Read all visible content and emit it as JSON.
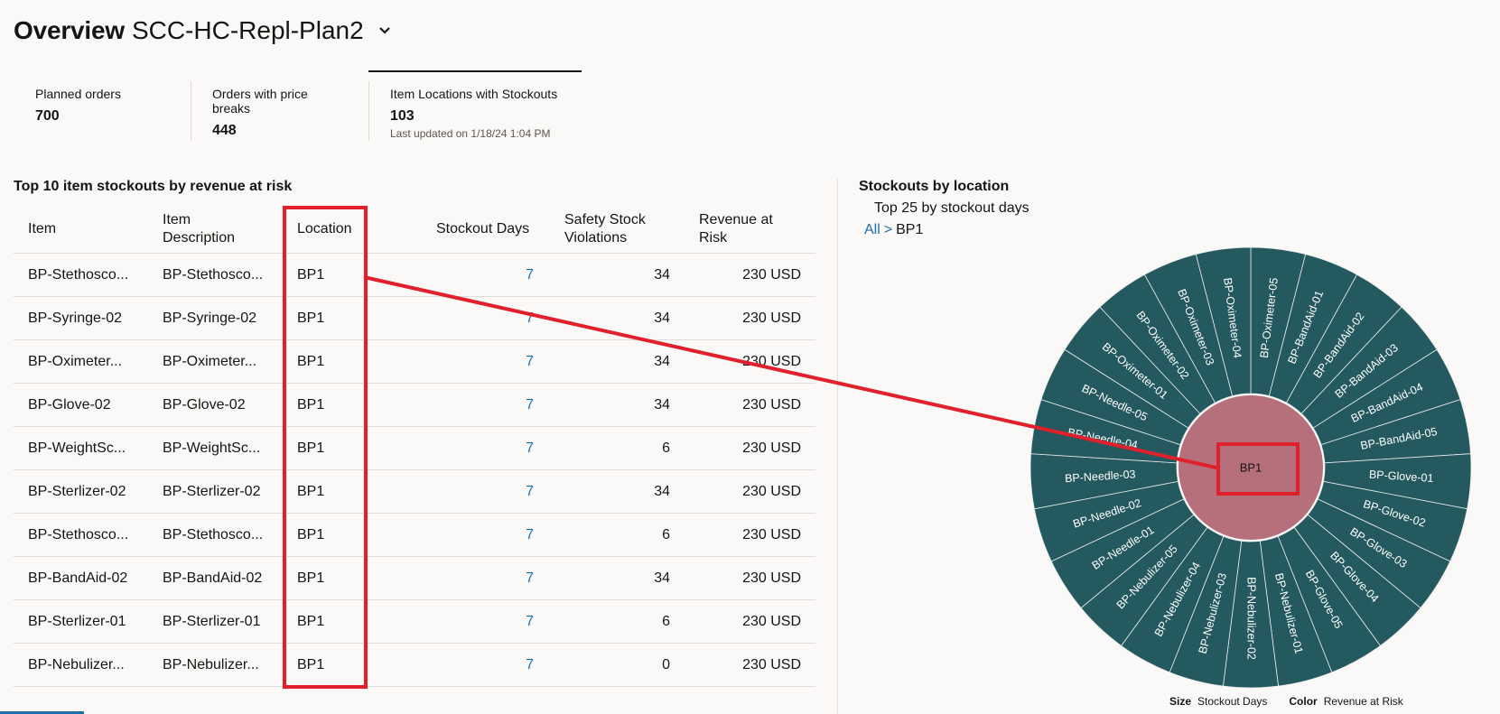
{
  "header": {
    "title": "Overview",
    "plan": "SCC-HC-Repl-Plan2"
  },
  "metrics": [
    {
      "label": "Planned orders",
      "value": "700"
    },
    {
      "label": "Orders with price breaks",
      "value": "448"
    },
    {
      "label": "Item Locations with Stockouts",
      "value": "103",
      "updated": "Last updated on 1/18/24 1:04 PM"
    }
  ],
  "table": {
    "title": "Top 10 item stockouts by revenue at risk",
    "columns": {
      "item": "Item",
      "item_desc_1": "Item",
      "item_desc_2": "Description",
      "location": "Location",
      "stockout_days": "Stockout Days",
      "ssv_1": "Safety Stock",
      "ssv_2": "Violations",
      "rar_1": "Revenue at",
      "rar_2": "Risk"
    },
    "rows": [
      {
        "item": "BP-Stethosco...",
        "desc": "BP-Stethosco...",
        "location": "BP1",
        "stockout_days": "7",
        "ssv": "34",
        "revenue": "230 USD"
      },
      {
        "item": "BP-Syringe-02",
        "desc": "BP-Syringe-02",
        "location": "BP1",
        "stockout_days": "7",
        "ssv": "34",
        "revenue": "230 USD"
      },
      {
        "item": "BP-Oximeter...",
        "desc": "BP-Oximeter...",
        "location": "BP1",
        "stockout_days": "7",
        "ssv": "34",
        "revenue": "230 USD"
      },
      {
        "item": "BP-Glove-02",
        "desc": "BP-Glove-02",
        "location": "BP1",
        "stockout_days": "7",
        "ssv": "34",
        "revenue": "230 USD"
      },
      {
        "item": "BP-WeightSc...",
        "desc": "BP-WeightSc...",
        "location": "BP1",
        "stockout_days": "7",
        "ssv": "6",
        "revenue": "230 USD"
      },
      {
        "item": "BP-Sterlizer-02",
        "desc": "BP-Sterlizer-02",
        "location": "BP1",
        "stockout_days": "7",
        "ssv": "34",
        "revenue": "230 USD"
      },
      {
        "item": "BP-Stethosco...",
        "desc": "BP-Stethosco...",
        "location": "BP1",
        "stockout_days": "7",
        "ssv": "6",
        "revenue": "230 USD"
      },
      {
        "item": "BP-BandAid-02",
        "desc": "BP-BandAid-02",
        "location": "BP1",
        "stockout_days": "7",
        "ssv": "34",
        "revenue": "230 USD"
      },
      {
        "item": "BP-Sterlizer-01",
        "desc": "BP-Sterlizer-01",
        "location": "BP1",
        "stockout_days": "7",
        "ssv": "6",
        "revenue": "230 USD"
      },
      {
        "item": "BP-Nebulizer...",
        "desc": "BP-Nebulizer...",
        "location": "BP1",
        "stockout_days": "7",
        "ssv": "0",
        "revenue": "230 USD"
      }
    ]
  },
  "chart": {
    "title": "Stockouts by location",
    "subtitle": "Top 25 by stockout days",
    "breadcrumb": {
      "all": "All",
      "separator": ">",
      "current": "BP1"
    },
    "legend": {
      "size_label": "Size",
      "size_value": "Stockout Days",
      "color_label": "Color",
      "color_value": "Revenue at Risk"
    }
  },
  "chart_data": {
    "type": "sunburst",
    "center": "BP1",
    "segments": [
      "BP-Oximeter-05",
      "BP-BandAid-01",
      "BP-BandAid-02",
      "BP-BandAid-03",
      "BP-BandAid-04",
      "BP-BandAid-05",
      "BP-Glove-01",
      "BP-Glove-02",
      "BP-Glove-03",
      "BP-Glove-04",
      "BP-Glove-05",
      "BP-Nebulizer-01",
      "BP-Nebulizer-02",
      "BP-Nebulizer-03",
      "BP-Nebulizer-04",
      "BP-Nebulizer-05",
      "BP-Needle-01",
      "BP-Needle-02",
      "BP-Needle-03",
      "BP-Needle-04",
      "BP-Needle-05",
      "BP-Oximeter-01",
      "BP-Oximeter-02",
      "BP-Oximeter-03",
      "BP-Oximeter-04"
    ],
    "colors": {
      "outer": "#245a5f",
      "center": "#b5707c",
      "annotation": "#e0202b"
    }
  }
}
